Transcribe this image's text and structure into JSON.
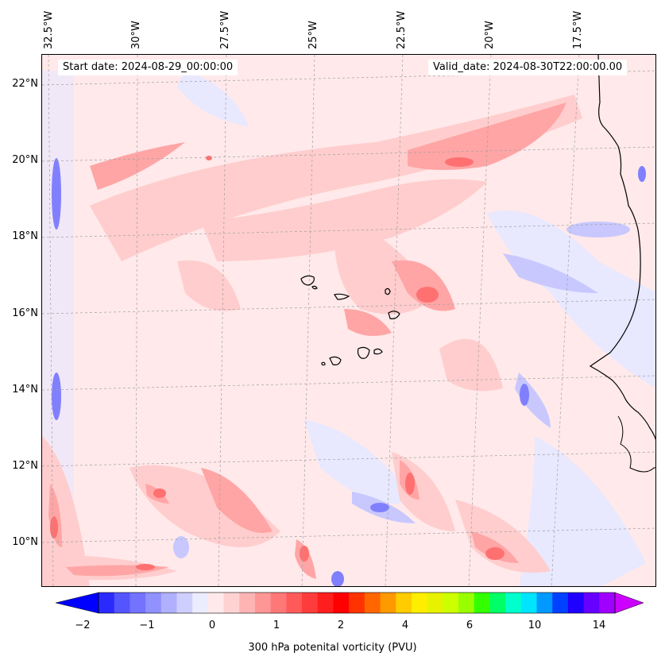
{
  "map": {
    "start_date": "Start date: 2024-08-29_00:00:00",
    "valid_date": "Valid_date: 2024-08-30T22:00:00.00",
    "lat_labels": [
      "22°N",
      "20°N",
      "18°N",
      "16°N",
      "14°N",
      "12°N",
      "10°N"
    ],
    "lon_labels": [
      "32.5°W",
      "30°W",
      "27.5°W",
      "25°W",
      "22.5°W",
      "20°W",
      "17.5°W"
    ],
    "background_color": "#ffe9ea",
    "coastline_color": "#000000"
  },
  "colorbar": {
    "label": "300 hPa potenital vorticity (PVU)",
    "ticks": [
      "−2",
      "−1",
      "0",
      "1",
      "2",
      "4",
      "6",
      "10",
      "14"
    ],
    "colors": [
      "#0000ff",
      "#2a2aff",
      "#5555ff",
      "#7373ff",
      "#9191ff",
      "#b0b0ff",
      "#cfcfff",
      "#ececff",
      "#ffe9ea",
      "#ffd2d2",
      "#ffb4b4",
      "#ff9696",
      "#ff7878",
      "#ff5a5a",
      "#ff3c3c",
      "#ff1e1e",
      "#ff0000",
      "#ff3300",
      "#ff6600",
      "#ff9900",
      "#ffcc00",
      "#ffee00",
      "#e6f200",
      "#ccff00",
      "#99ff00",
      "#33ff00",
      "#00ff66",
      "#00ffcc",
      "#00e5ff",
      "#0099ff",
      "#0040ff",
      "#2000ff",
      "#6600ff",
      "#a000ff",
      "#cc00ff"
    ]
  }
}
